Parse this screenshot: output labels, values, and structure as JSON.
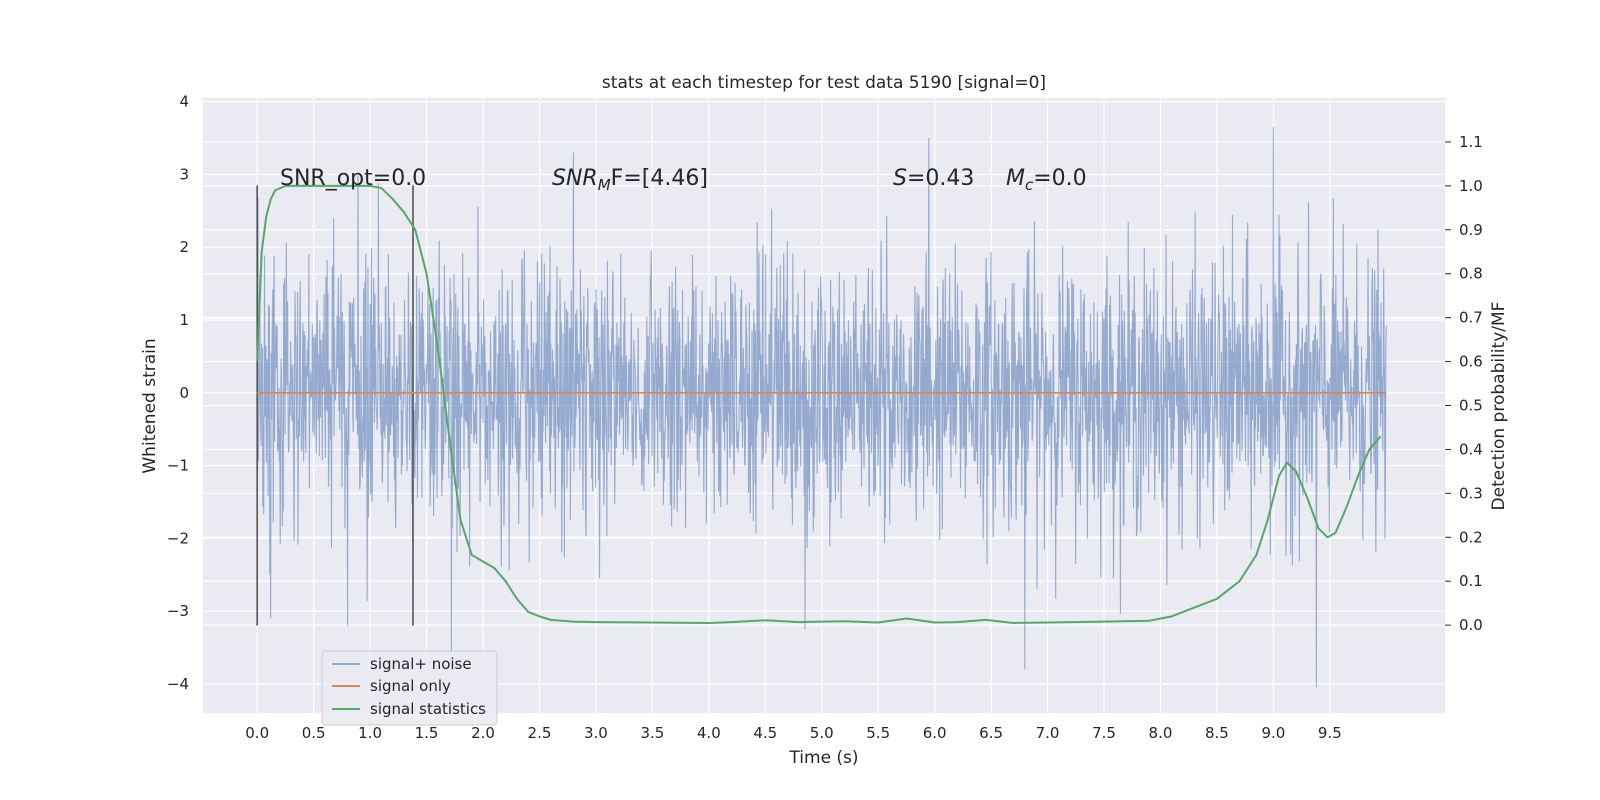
{
  "chart_data": {
    "type": "line",
    "title": "stats at each timestep for test data 5190 [signal=0]",
    "xlabel": "Time (s)",
    "ylabel_left": "Whitened strain",
    "ylabel_right": "Detection probability/MF",
    "xlim": [
      -0.48,
      10.52
    ],
    "ylim_left": [
      -4.4,
      4.05
    ],
    "ylim_right": [
      -0.2,
      1.2
    ],
    "x_ticks": [
      "0.0",
      "0.5",
      "1.0",
      "1.5",
      "2.0",
      "2.5",
      "3.0",
      "3.5",
      "4.0",
      "4.5",
      "5.0",
      "5.5",
      "6.0",
      "6.5",
      "7.0",
      "7.5",
      "8.0",
      "8.5",
      "9.0",
      "9.5"
    ],
    "y_left_ticks": [
      "4",
      "3",
      "2",
      "1",
      "0",
      "−1",
      "−2",
      "−3",
      "−4"
    ],
    "y_right_ticks": [
      "1.1",
      "1.0",
      "0.9",
      "0.8",
      "0.7",
      "0.6",
      "0.5",
      "0.4",
      "0.3",
      "0.2",
      "0.1",
      "0.0"
    ],
    "grid": true,
    "legend_position": "lower-left",
    "annotations": {
      "snr_opt": "SNR_opt=0.0",
      "snr_mf_sym": "SNR",
      "snr_mf_sub": "M",
      "snr_mf_rest": "F=[4.46]",
      "s_sym": "S",
      "s_rest": "=0.43",
      "mc_sym": "M",
      "mc_sub": "c",
      "mc_rest": "=0.0"
    },
    "vertical_markers": [
      0.0,
      1.38
    ],
    "series": [
      {
        "name": "signal+ noise",
        "axis": "left",
        "color": "#4c72b0",
        "opacity": 0.55,
        "x_range": [
          0.0,
          10.0
        ],
        "typical_envelope": [
          -1.6,
          1.6
        ],
        "extremes": [
          {
            "x": 0.12,
            "y": -3.1
          },
          {
            "x": 0.8,
            "y": -3.2
          },
          {
            "x": 1.72,
            "y": -3.55
          },
          {
            "x": 2.8,
            "y": 3.3
          },
          {
            "x": 4.85,
            "y": -3.25
          },
          {
            "x": 5.95,
            "y": 3.5
          },
          {
            "x": 6.8,
            "y": -3.8
          },
          {
            "x": 9.0,
            "y": 3.65
          },
          {
            "x": 9.38,
            "y": -4.05
          }
        ]
      },
      {
        "name": "signal only",
        "axis": "left",
        "color": "#dd8452",
        "x": [
          0.0,
          10.0
        ],
        "y": [
          0.0,
          0.0
        ]
      },
      {
        "name": "signal statistics",
        "axis": "right",
        "color": "#55a868",
        "x": [
          0.0,
          0.04,
          0.08,
          0.12,
          0.16,
          0.25,
          0.4,
          0.6,
          0.8,
          1.0,
          1.1,
          1.2,
          1.3,
          1.4,
          1.5,
          1.6,
          1.7,
          1.8,
          1.9,
          2.0,
          2.1,
          2.2,
          2.3,
          2.4,
          2.5,
          2.6,
          2.8,
          3.0,
          3.5,
          4.0,
          4.2,
          4.5,
          4.8,
          5.0,
          5.2,
          5.5,
          5.75,
          6.0,
          6.2,
          6.45,
          6.7,
          7.0,
          7.5,
          7.9,
          8.1,
          8.3,
          8.5,
          8.7,
          8.85,
          8.95,
          9.05,
          9.12,
          9.2,
          9.3,
          9.4,
          9.48,
          9.55,
          9.65,
          9.75,
          9.85,
          9.95
        ],
        "y": [
          0.6,
          0.85,
          0.93,
          0.97,
          0.99,
          1.0,
          1.0,
          1.0,
          1.0,
          1.0,
          0.995,
          0.97,
          0.94,
          0.9,
          0.8,
          0.63,
          0.43,
          0.24,
          0.16,
          0.145,
          0.13,
          0.1,
          0.06,
          0.03,
          0.02,
          0.012,
          0.008,
          0.007,
          0.006,
          0.005,
          0.007,
          0.011,
          0.007,
          0.008,
          0.009,
          0.006,
          0.015,
          0.006,
          0.007,
          0.012,
          0.005,
          0.006,
          0.008,
          0.01,
          0.02,
          0.04,
          0.06,
          0.1,
          0.16,
          0.24,
          0.34,
          0.37,
          0.35,
          0.29,
          0.22,
          0.2,
          0.21,
          0.27,
          0.34,
          0.4,
          0.43
        ]
      }
    ]
  }
}
